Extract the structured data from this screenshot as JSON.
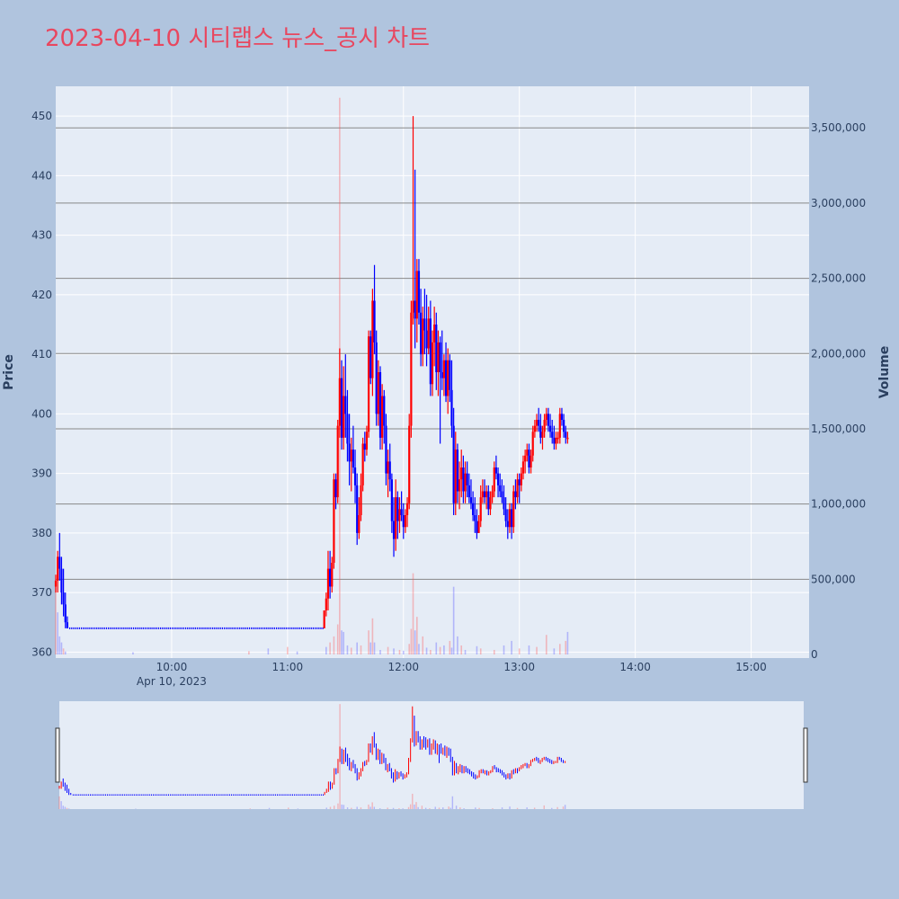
{
  "chart_data": {
    "title": "2023-04-10 시티랩스 뉴스_공시 차트",
    "type": "candlestick",
    "ylabel": "Price",
    "y2label": "Volume",
    "date_label": "Apr 10, 2023",
    "ylim": [
      359,
      455
    ],
    "volume_lim": [
      0,
      3800000
    ],
    "price_ticks": [
      "360",
      "370",
      "380",
      "390",
      "400",
      "410",
      "420",
      "430",
      "440",
      "450"
    ],
    "volume_ticks": [
      "0",
      "500,000",
      "1,000,000",
      "1,500,000",
      "2,000,000",
      "2,500,000",
      "3,000,000",
      "3,500,000"
    ],
    "time_ticks": [
      "10:00",
      "11:00",
      "12:00",
      "13:00",
      "14:00",
      "15:00"
    ],
    "x_range": [
      "09:00",
      "15:30"
    ],
    "increasing_color": "#ff0000",
    "decreasing_color": "#0000ff",
    "grid": true,
    "range_slider": true,
    "candles": [
      [
        "09:00",
        371,
        373,
        370,
        372
      ],
      [
        "09:01",
        372,
        377,
        370,
        376
      ],
      [
        "09:02",
        376,
        380,
        372,
        374
      ],
      [
        "09:03",
        374,
        376,
        368,
        370
      ],
      [
        "09:04",
        370,
        374,
        366,
        368
      ],
      [
        "09:05",
        368,
        370,
        364,
        365
      ],
      [
        "09:06",
        365,
        366,
        364,
        364
      ],
      [
        "11:19",
        364,
        367,
        364,
        367
      ],
      [
        "11:20",
        367,
        370,
        366,
        369
      ],
      [
        "11:21",
        369,
        377,
        367,
        374
      ],
      [
        "11:22",
        374,
        377,
        369,
        371
      ],
      [
        "11:23",
        371,
        376,
        370,
        375
      ],
      [
        "11:24",
        375,
        390,
        374,
        389
      ],
      [
        "11:25",
        389,
        390,
        384,
        386
      ],
      [
        "11:26",
        386,
        399,
        385,
        398
      ],
      [
        "11:27",
        398,
        411,
        396,
        406
      ],
      [
        "11:28",
        406,
        409,
        394,
        396
      ],
      [
        "11:29",
        396,
        408,
        394,
        403
      ],
      [
        "11:30",
        403,
        410,
        396,
        400
      ],
      [
        "11:31",
        400,
        404,
        392,
        395
      ],
      [
        "11:32",
        395,
        400,
        388,
        392
      ],
      [
        "11:33",
        392,
        396,
        387,
        394
      ],
      [
        "11:34",
        394,
        398,
        390,
        391
      ],
      [
        "11:35",
        391,
        394,
        385,
        388
      ],
      [
        "11:36",
        388,
        390,
        378,
        380
      ],
      [
        "11:37",
        380,
        386,
        379,
        383
      ],
      [
        "11:38",
        383,
        390,
        382,
        388
      ],
      [
        "11:39",
        388,
        396,
        387,
        395
      ],
      [
        "11:40",
        395,
        397,
        392,
        394
      ],
      [
        "11:41",
        394,
        398,
        393,
        397
      ],
      [
        "11:42",
        397,
        414,
        396,
        413
      ],
      [
        "11:43",
        413,
        414,
        405,
        406
      ],
      [
        "11:44",
        406,
        421,
        403,
        419
      ],
      [
        "11:45",
        419,
        425,
        410,
        412
      ],
      [
        "11:46",
        412,
        414,
        398,
        400
      ],
      [
        "11:47",
        400,
        409,
        398,
        407
      ],
      [
        "11:48",
        407,
        408,
        394,
        396
      ],
      [
        "11:49",
        396,
        405,
        394,
        403
      ],
      [
        "11:50",
        403,
        404,
        395,
        398
      ],
      [
        "11:51",
        398,
        400,
        388,
        390
      ],
      [
        "11:52",
        390,
        394,
        386,
        392
      ],
      [
        "11:53",
        392,
        395,
        387,
        389
      ],
      [
        "11:54",
        389,
        390,
        380,
        382
      ],
      [
        "11:55",
        382,
        386,
        376,
        379
      ],
      [
        "11:56",
        379,
        389,
        377,
        386
      ],
      [
        "11:57",
        386,
        387,
        379,
        382
      ],
      [
        "11:58",
        382,
        386,
        380,
        384
      ],
      [
        "11:59",
        384,
        387,
        382,
        383
      ],
      [
        "12:00",
        383,
        385,
        379,
        381
      ],
      [
        "12:01",
        381,
        384,
        380,
        383
      ],
      [
        "12:02",
        383,
        386,
        381,
        385
      ],
      [
        "12:03",
        385,
        400,
        384,
        398
      ],
      [
        "12:04",
        398,
        419,
        396,
        417
      ],
      [
        "12:05",
        417,
        450,
        415,
        419
      ],
      [
        "12:06",
        419,
        441,
        411,
        416
      ],
      [
        "12:07",
        416,
        426,
        412,
        424
      ],
      [
        "12:08",
        424,
        426,
        415,
        417
      ],
      [
        "12:09",
        417,
        421,
        408,
        410
      ],
      [
        "12:10",
        410,
        418,
        408,
        416
      ],
      [
        "12:11",
        416,
        421,
        410,
        414
      ],
      [
        "12:12",
        414,
        420,
        408,
        411
      ],
      [
        "12:13",
        411,
        418,
        410,
        416
      ],
      [
        "12:14",
        416,
        419,
        403,
        405
      ],
      [
        "12:15",
        405,
        414,
        403,
        412
      ],
      [
        "12:16",
        412,
        418,
        408,
        415
      ],
      [
        "12:17",
        415,
        417,
        404,
        407
      ],
      [
        "12:18",
        407,
        414,
        403,
        412
      ],
      [
        "12:19",
        412,
        413,
        395,
        407
      ],
      [
        "12:20",
        407,
        414,
        404,
        406
      ],
      [
        "12:21",
        406,
        410,
        403,
        409
      ],
      [
        "12:22",
        409,
        412,
        402,
        403
      ],
      [
        "12:23",
        403,
        411,
        400,
        409
      ],
      [
        "12:24",
        409,
        410,
        402,
        404
      ],
      [
        "12:25",
        404,
        409,
        396,
        398
      ],
      [
        "12:26",
        398,
        401,
        383,
        385
      ],
      [
        "12:27",
        385,
        397,
        383,
        394
      ],
      [
        "12:28",
        394,
        395,
        385,
        387
      ],
      [
        "12:29",
        387,
        392,
        384,
        389
      ],
      [
        "12:30",
        389,
        394,
        386,
        391
      ],
      [
        "12:31",
        391,
        393,
        385,
        387
      ],
      [
        "12:32",
        387,
        392,
        385,
        390
      ],
      [
        "12:33",
        390,
        392,
        386,
        388
      ],
      [
        "12:34",
        388,
        390,
        385,
        386
      ],
      [
        "12:35",
        386,
        389,
        384,
        385
      ],
      [
        "12:36",
        385,
        387,
        382,
        383
      ],
      [
        "12:37",
        383,
        386,
        380,
        382
      ],
      [
        "12:38",
        382,
        384,
        379,
        380
      ],
      [
        "12:39",
        380,
        383,
        380,
        382
      ],
      [
        "12:40",
        382,
        388,
        381,
        386
      ],
      [
        "12:41",
        386,
        389,
        385,
        387
      ],
      [
        "12:42",
        387,
        389,
        385,
        386
      ],
      [
        "12:43",
        386,
        388,
        384,
        387
      ],
      [
        "12:44",
        387,
        388,
        383,
        384
      ],
      [
        "12:45",
        384,
        387,
        383,
        386
      ],
      [
        "12:46",
        386,
        388,
        385,
        387
      ],
      [
        "12:47",
        387,
        392,
        386,
        391
      ],
      [
        "12:48",
        391,
        393,
        389,
        390
      ],
      [
        "12:49",
        390,
        391,
        386,
        388
      ],
      [
        "12:50",
        388,
        390,
        386,
        387
      ],
      [
        "12:51",
        387,
        389,
        385,
        386
      ],
      [
        "12:52",
        386,
        388,
        383,
        384
      ],
      [
        "12:53",
        384,
        386,
        381,
        382
      ],
      [
        "12:54",
        382,
        384,
        379,
        381
      ],
      [
        "12:55",
        381,
        385,
        380,
        384
      ],
      [
        "12:56",
        384,
        385,
        379,
        381
      ],
      [
        "12:57",
        381,
        388,
        380,
        387
      ],
      [
        "12:58",
        387,
        389,
        384,
        386
      ],
      [
        "12:59",
        386,
        390,
        385,
        389
      ],
      [
        "13:00",
        389,
        390,
        385,
        388
      ],
      [
        "13:01",
        388,
        391,
        387,
        390
      ],
      [
        "13:02",
        390,
        393,
        389,
        392
      ],
      [
        "13:03",
        392,
        394,
        390,
        393
      ],
      [
        "13:04",
        393,
        395,
        392,
        394
      ],
      [
        "13:05",
        394,
        395,
        390,
        391
      ],
      [
        "13:06",
        391,
        394,
        390,
        393
      ],
      [
        "13:07",
        393,
        398,
        392,
        397
      ],
      [
        "13:08",
        397,
        399,
        396,
        398
      ],
      [
        "13:09",
        398,
        400,
        397,
        399
      ],
      [
        "13:10",
        399,
        401,
        397,
        398
      ],
      [
        "13:11",
        398,
        400,
        395,
        396
      ],
      [
        "13:12",
        396,
        398,
        394,
        397
      ],
      [
        "13:13",
        397,
        400,
        396,
        399
      ],
      [
        "13:14",
        399,
        401,
        398,
        400
      ],
      [
        "13:15",
        400,
        401,
        397,
        398
      ],
      [
        "13:16",
        398,
        400,
        396,
        397
      ],
      [
        "13:17",
        397,
        399,
        395,
        396
      ],
      [
        "13:18",
        396,
        398,
        394,
        395
      ],
      [
        "13:19",
        395,
        397,
        394,
        396
      ],
      [
        "13:20",
        396,
        397,
        395,
        396
      ],
      [
        "13:21",
        396,
        401,
        395,
        400
      ],
      [
        "13:22",
        400,
        401,
        398,
        399
      ],
      [
        "13:23",
        399,
        400,
        396,
        397
      ],
      [
        "13:24",
        397,
        398,
        395,
        396
      ],
      [
        "13:25",
        396,
        397,
        395,
        396
      ]
    ],
    "volumes": [
      [
        "09:00",
        450000,
        "up"
      ],
      [
        "09:01",
        280000,
        "down"
      ],
      [
        "09:02",
        120000,
        "down"
      ],
      [
        "09:03",
        80000,
        "down"
      ],
      [
        "09:04",
        40000,
        "up"
      ],
      [
        "09:05",
        20000,
        "down"
      ],
      [
        "09:40",
        15000,
        "down"
      ],
      [
        "10:40",
        22000,
        "up"
      ],
      [
        "10:50",
        40000,
        "down"
      ],
      [
        "11:00",
        50000,
        "up"
      ],
      [
        "11:05",
        20000,
        "down"
      ],
      [
        "11:20",
        50000,
        "down"
      ],
      [
        "11:22",
        80000,
        "up"
      ],
      [
        "11:24",
        120000,
        "up"
      ],
      [
        "11:26",
        200000,
        "up"
      ],
      [
        "11:27",
        3700000,
        "up"
      ],
      [
        "11:28",
        160000,
        "down"
      ],
      [
        "11:29",
        150000,
        "down"
      ],
      [
        "11:31",
        60000,
        "down"
      ],
      [
        "11:33",
        45000,
        "up"
      ],
      [
        "11:36",
        80000,
        "down"
      ],
      [
        "11:38",
        60000,
        "up"
      ],
      [
        "11:42",
        160000,
        "up"
      ],
      [
        "11:43",
        80000,
        "down"
      ],
      [
        "11:44",
        240000,
        "up"
      ],
      [
        "11:45",
        80000,
        "down"
      ],
      [
        "11:48",
        30000,
        "down"
      ],
      [
        "11:52",
        50000,
        "up"
      ],
      [
        "11:55",
        40000,
        "down"
      ],
      [
        "11:58",
        30000,
        "up"
      ],
      [
        "12:00",
        25000,
        "down"
      ],
      [
        "12:03",
        70000,
        "up"
      ],
      [
        "12:04",
        170000,
        "up"
      ],
      [
        "12:05",
        540000,
        "up"
      ],
      [
        "12:06",
        160000,
        "down"
      ],
      [
        "12:07",
        250000,
        "up"
      ],
      [
        "12:08",
        70000,
        "down"
      ],
      [
        "12:10",
        120000,
        "up"
      ],
      [
        "12:12",
        45000,
        "down"
      ],
      [
        "12:14",
        30000,
        "up"
      ],
      [
        "12:17",
        80000,
        "down"
      ],
      [
        "12:19",
        50000,
        "up"
      ],
      [
        "12:21",
        60000,
        "down"
      ],
      [
        "12:24",
        90000,
        "up"
      ],
      [
        "12:25",
        45000,
        "down"
      ],
      [
        "12:26",
        450000,
        "down"
      ],
      [
        "12:28",
        120000,
        "down"
      ],
      [
        "12:30",
        60000,
        "up"
      ],
      [
        "12:32",
        30000,
        "down"
      ],
      [
        "12:38",
        55000,
        "down"
      ],
      [
        "12:40",
        40000,
        "up"
      ],
      [
        "12:47",
        30000,
        "up"
      ],
      [
        "12:52",
        60000,
        "down"
      ],
      [
        "12:56",
        90000,
        "down"
      ],
      [
        "13:00",
        40000,
        "up"
      ],
      [
        "13:05",
        60000,
        "down"
      ],
      [
        "13:09",
        50000,
        "up"
      ],
      [
        "13:14",
        130000,
        "up"
      ],
      [
        "13:18",
        40000,
        "down"
      ],
      [
        "13:21",
        70000,
        "up"
      ],
      [
        "13:24",
        90000,
        "up"
      ],
      [
        "13:25",
        150000,
        "down"
      ]
    ]
  }
}
